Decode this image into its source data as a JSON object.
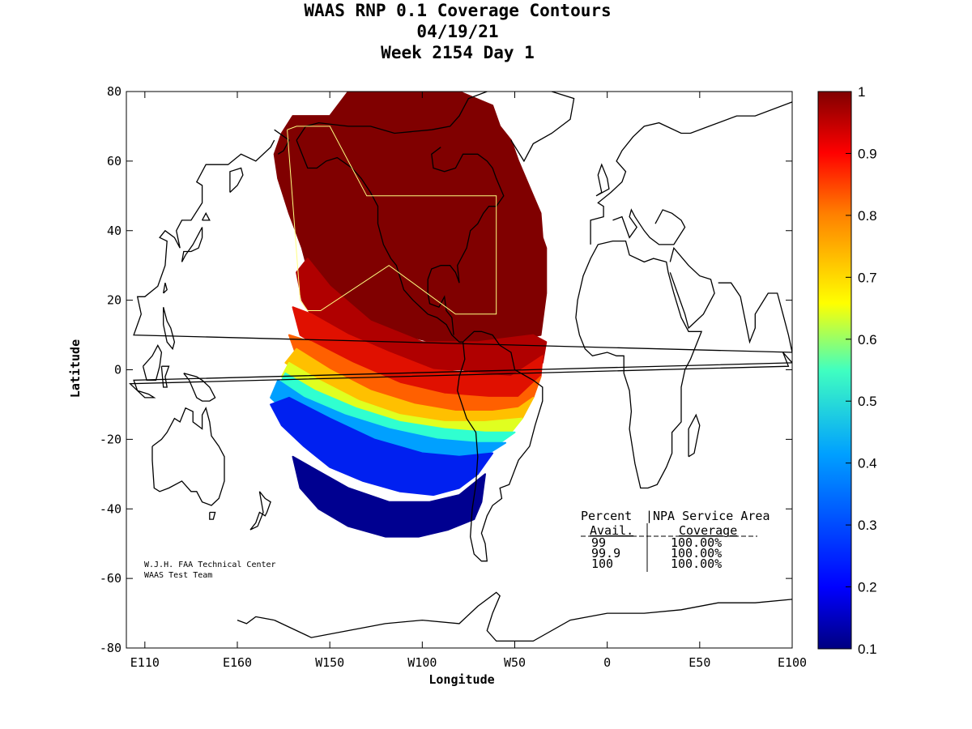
{
  "chart_data": {
    "type": "heatmap",
    "title_lines": [
      "WAAS RNP 0.1 Coverage Contours",
      "04/19/21",
      "Week 2154 Day 1"
    ],
    "xlabel": "Longitude",
    "ylabel": "Latitude",
    "x_ticks": [
      {
        "value": -250,
        "label": "E110"
      },
      {
        "value": -200,
        "label": "E160"
      },
      {
        "value": -150,
        "label": "W150"
      },
      {
        "value": -100,
        "label": "W100"
      },
      {
        "value": -50,
        "label": "W50"
      },
      {
        "value": 0,
        "label": "0"
      },
      {
        "value": 50,
        "label": "E50"
      },
      {
        "value": 100,
        "label": "E100"
      }
    ],
    "y_ticks": [
      80,
      60,
      40,
      20,
      0,
      -20,
      -40,
      -60,
      -80
    ],
    "xlim": [
      -260,
      100
    ],
    "ylim": [
      -80,
      80
    ],
    "colorbar": {
      "range": [
        0.1,
        1
      ],
      "ticks": [
        "1",
        "0.9",
        "0.8",
        "0.7",
        "0.6",
        "0.5",
        "0.4",
        "0.3",
        "0.2",
        "0.1"
      ],
      "colormap": "jet"
    },
    "coverage_bands": [
      {
        "level": 1.0,
        "color": "#800000",
        "polygon": [
          [
            -170,
            73
          ],
          [
            -150,
            73
          ],
          [
            -140,
            80
          ],
          [
            -80,
            80
          ],
          [
            -62,
            76
          ],
          [
            -58,
            70
          ],
          [
            -52,
            66
          ],
          [
            -48,
            60
          ],
          [
            -40,
            50
          ],
          [
            -36,
            45
          ],
          [
            -35,
            38
          ],
          [
            -33,
            35
          ],
          [
            -33,
            22
          ],
          [
            -36,
            10
          ],
          [
            -62,
            8
          ],
          [
            -95,
            8
          ],
          [
            -125,
            12
          ],
          [
            -155,
            18
          ],
          [
            -160,
            25
          ],
          [
            -165,
            35
          ],
          [
            -172,
            45
          ],
          [
            -178,
            55
          ],
          [
            -180,
            62
          ],
          [
            -176,
            68
          ]
        ]
      },
      {
        "level": 0.95,
        "color": "#b00000",
        "polygon": [
          [
            -40,
            10
          ],
          [
            -33,
            8
          ],
          [
            -35,
            2
          ],
          [
            -48,
            -2
          ],
          [
            -62,
            -2
          ],
          [
            -78,
            0
          ],
          [
            -92,
            0
          ],
          [
            -108,
            2
          ],
          [
            -124,
            6
          ],
          [
            -142,
            10
          ],
          [
            -158,
            14
          ],
          [
            -165,
            20
          ],
          [
            -168,
            28
          ],
          [
            -162,
            32
          ],
          [
            -150,
            24
          ],
          [
            -128,
            14
          ],
          [
            -100,
            8
          ],
          [
            -70,
            8
          ]
        ]
      },
      {
        "level": 0.9,
        "color": "#e01000",
        "polygon": [
          [
            -35,
            4
          ],
          [
            -36,
            -2
          ],
          [
            -48,
            -8
          ],
          [
            -62,
            -9
          ],
          [
            -80,
            -8
          ],
          [
            -100,
            -7
          ],
          [
            -124,
            -2
          ],
          [
            -148,
            4
          ],
          [
            -166,
            10
          ],
          [
            -170,
            18
          ],
          [
            -160,
            16
          ],
          [
            -140,
            10
          ],
          [
            -118,
            5
          ],
          [
            -94,
            0
          ],
          [
            -72,
            -1
          ],
          [
            -52,
            -2
          ]
        ]
      },
      {
        "level": 0.8,
        "color": "#ff6000",
        "polygon": [
          [
            -36,
            -2
          ],
          [
            -40,
            -8
          ],
          [
            -50,
            -12
          ],
          [
            -64,
            -13
          ],
          [
            -82,
            -13
          ],
          [
            -102,
            -12
          ],
          [
            -126,
            -8
          ],
          [
            -150,
            -2
          ],
          [
            -168,
            4
          ],
          [
            -172,
            10
          ],
          [
            -160,
            8
          ],
          [
            -138,
            2
          ],
          [
            -112,
            -4
          ],
          [
            -88,
            -7
          ],
          [
            -64,
            -8
          ],
          [
            -48,
            -8
          ]
        ]
      },
      {
        "level": 0.7,
        "color": "#ffc000",
        "polygon": [
          [
            -40,
            -8
          ],
          [
            -46,
            -14
          ],
          [
            -58,
            -16
          ],
          [
            -76,
            -16
          ],
          [
            -96,
            -16
          ],
          [
            -118,
            -14
          ],
          [
            -140,
            -8
          ],
          [
            -162,
            -2
          ],
          [
            -174,
            2
          ],
          [
            -168,
            6
          ],
          [
            -150,
            0
          ],
          [
            -128,
            -6
          ],
          [
            -104,
            -10
          ],
          [
            -82,
            -12
          ],
          [
            -62,
            -12
          ],
          [
            -48,
            -11
          ]
        ]
      },
      {
        "level": 0.6,
        "color": "#e0ff20",
        "polygon": [
          [
            -46,
            -14
          ],
          [
            -52,
            -18
          ],
          [
            -66,
            -19
          ],
          [
            -86,
            -19
          ],
          [
            -106,
            -18
          ],
          [
            -128,
            -15
          ],
          [
            -148,
            -10
          ],
          [
            -166,
            -6
          ],
          [
            -176,
            -2
          ],
          [
            -172,
            2
          ],
          [
            -156,
            -3
          ],
          [
            -134,
            -9
          ],
          [
            -112,
            -13
          ],
          [
            -88,
            -15
          ],
          [
            -66,
            -15
          ]
        ]
      },
      {
        "level": 0.5,
        "color": "#30ffd0",
        "polygon": [
          [
            -50,
            -18
          ],
          [
            -58,
            -21
          ],
          [
            -74,
            -22
          ],
          [
            -94,
            -22
          ],
          [
            -114,
            -21
          ],
          [
            -134,
            -18
          ],
          [
            -154,
            -13
          ],
          [
            -170,
            -9
          ],
          [
            -178,
            -5
          ],
          [
            -174,
            -1
          ],
          [
            -158,
            -6
          ],
          [
            -136,
            -11
          ],
          [
            -112,
            -15
          ],
          [
            -88,
            -17
          ],
          [
            -66,
            -18
          ]
        ]
      },
      {
        "level": 0.4,
        "color": "#00a0ff",
        "polygon": [
          [
            -55,
            -21
          ],
          [
            -64,
            -24
          ],
          [
            -80,
            -25
          ],
          [
            -100,
            -25
          ],
          [
            -122,
            -24
          ],
          [
            -142,
            -21
          ],
          [
            -160,
            -16
          ],
          [
            -174,
            -12
          ],
          [
            -182,
            -8
          ],
          [
            -178,
            -3
          ],
          [
            -164,
            -8
          ],
          [
            -142,
            -13
          ],
          [
            -118,
            -17
          ],
          [
            -92,
            -20
          ],
          [
            -70,
            -21
          ]
        ]
      },
      {
        "level": 0.25,
        "color": "#0020f0",
        "polygon": [
          [
            -62,
            -24
          ],
          [
            -70,
            -30
          ],
          [
            -80,
            -34
          ],
          [
            -94,
            -36
          ],
          [
            -112,
            -35
          ],
          [
            -132,
            -32
          ],
          [
            -150,
            -28
          ],
          [
            -164,
            -22
          ],
          [
            -176,
            -16
          ],
          [
            -182,
            -10
          ],
          [
            -172,
            -8
          ],
          [
            -150,
            -14
          ],
          [
            -126,
            -20
          ],
          [
            -100,
            -24
          ],
          [
            -80,
            -25
          ]
        ]
      },
      {
        "level": 0.15,
        "color": "#000090",
        "polygon": [
          [
            -66,
            -30
          ],
          [
            -68,
            -38
          ],
          [
            -72,
            -43
          ],
          [
            -86,
            -46
          ],
          [
            -102,
            -48
          ],
          [
            -120,
            -48
          ],
          [
            -140,
            -45
          ],
          [
            -156,
            -40
          ],
          [
            -166,
            -34
          ],
          [
            -170,
            -25
          ],
          [
            -160,
            -28
          ],
          [
            -140,
            -34
          ],
          [
            -118,
            -38
          ],
          [
            -96,
            -38
          ],
          [
            -80,
            -36
          ]
        ]
      }
    ],
    "service_area_outline": [
      [
        -173,
        69
      ],
      [
        -168,
        70
      ],
      [
        -150,
        70
      ],
      [
        -130,
        50
      ],
      [
        -60,
        50
      ],
      [
        -60,
        16
      ],
      [
        -82,
        16
      ],
      [
        -118,
        30
      ],
      [
        -155,
        17
      ],
      [
        -162,
        17
      ],
      [
        -166,
        20
      ]
    ],
    "table": {
      "header_col1": "Percent",
      "header_sep": "|",
      "header_col2": "NPA Service Area",
      "subheader_col1": "Avail.",
      "subheader_col2": "Coverage",
      "rows": [
        {
          "percent": "99",
          "coverage": "100.00%"
        },
        {
          "percent": "99.9",
          "coverage": "100.00%"
        },
        {
          "percent": "100",
          "coverage": "100.00%"
        }
      ]
    },
    "credit_lines": [
      "W.J.H. FAA Technical Center",
      "WAAS Test Team"
    ]
  },
  "colors": {
    "land_outline": "#000000",
    "service_area_outline": "#ffff80",
    "background": "#ffffff"
  }
}
